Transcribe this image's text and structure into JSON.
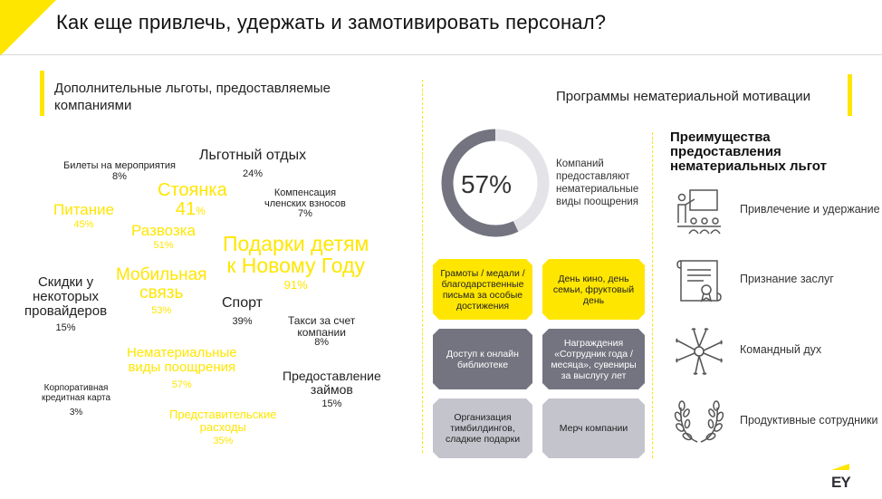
{
  "title": "Как еще привлечь, удержать и замотивировать персонал?",
  "left_section": {
    "title_line1": "Дополнительные льготы, предоставляемые",
    "title_line2": "компаниями",
    "items": [
      {
        "label_lines": [
          "Билеты на мероприятия"
        ],
        "pct": "8%"
      },
      {
        "label_lines": [
          "Льготный отдых"
        ],
        "pct": "24%"
      },
      {
        "label_lines": [
          "Стоянка",
          "41"
        ],
        "pct": "%"
      },
      {
        "label_lines": [
          "Питание"
        ],
        "pct": "45%"
      },
      {
        "label_lines": [
          "Компенсация",
          "членских взносов"
        ],
        "pct": "7%"
      },
      {
        "label_lines": [
          "Развозка"
        ],
        "pct": "51%"
      },
      {
        "label_lines": [
          "Подарки детям",
          "к Новому Году"
        ],
        "pct": "91%"
      },
      {
        "label_lines": [
          "Скидки у",
          "некоторых",
          "провайдеров"
        ],
        "pct": "15%"
      },
      {
        "label_lines": [
          "Мобильная",
          "связь"
        ],
        "pct": "53%"
      },
      {
        "label_lines": [
          "Спорт"
        ],
        "pct": "39%"
      },
      {
        "label_lines": [
          "Такси за счет",
          "компании"
        ],
        "pct": "8%"
      },
      {
        "label_lines": [
          "Нематериальные",
          "виды поощрения"
        ],
        "pct": "57%"
      },
      {
        "label_lines": [
          "Предоставление",
          "займов"
        ],
        "pct": "15%"
      },
      {
        "label_lines": [
          "Корпоративная",
          "кредитная карта"
        ],
        "pct": "3%"
      },
      {
        "label_lines": [
          "Представительские",
          "расходы"
        ],
        "pct": "35%"
      }
    ]
  },
  "middle_section": {
    "title": "Программы нематериальной мотивации",
    "donut": {
      "value": 57,
      "label": "57%"
    },
    "donut_caption": [
      "Компаний",
      "предоставляют",
      "нематериальные",
      "виды поощрения"
    ],
    "tiles": [
      {
        "lines": [
          "Грамоты / медали /",
          "благодарственные",
          "письма за особые",
          "достижения"
        ],
        "style": "yellow"
      },
      {
        "lines": [
          "День кино, день",
          "семьи, фруктовый",
          "день"
        ],
        "style": "yellow"
      },
      {
        "lines": [
          "Доступ к онлайн",
          "библиотеке"
        ],
        "style": "dark"
      },
      {
        "lines": [
          "Награждения",
          "«Сотрудник года /",
          "месяца», сувениры",
          "за выслугу лет"
        ],
        "style": "dark"
      },
      {
        "lines": [
          "Организация",
          "тимбилдингов,",
          "сладкие подарки"
        ],
        "style": "light"
      },
      {
        "lines": [
          "Мерч компании"
        ],
        "style": "light"
      }
    ]
  },
  "right_section": {
    "title_lines": [
      "Преимущества",
      "предоставления",
      "нематериальных льгот"
    ],
    "items": [
      {
        "label": "Привлечение и удержание",
        "icon": "presentation-icon"
      },
      {
        "label": "Признание заслуг",
        "icon": "certificate-icon"
      },
      {
        "label": "Командный дух",
        "icon": "team-hands-icon"
      },
      {
        "label": "Продуктивные сотрудники",
        "icon": "laurel-wreath-icon"
      }
    ]
  },
  "logo": "EY",
  "colors": {
    "accent": "#ffe600",
    "dark_grey": "#747480",
    "light_grey": "#c4c4cd"
  }
}
